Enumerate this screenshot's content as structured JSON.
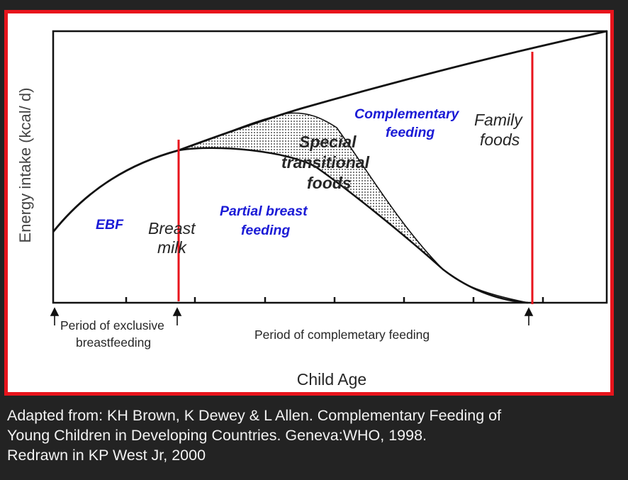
{
  "diagram": {
    "y_axis_label": "Energy intake (kcal/ d)",
    "x_axis_label": "Child Age",
    "labels": {
      "ebf": "EBF",
      "breast_milk_line1": "Breast",
      "breast_milk_line2": "milk",
      "partial_line1": "Partial breast",
      "partial_line2": "feeding",
      "special_line1": "Special",
      "special_line2": "transitional",
      "special_line3": "foods",
      "complementary_line1": "Complementary",
      "complementary_line2": "feeding",
      "family_line1": "Family",
      "family_line2": "foods"
    },
    "periods": {
      "exclusive_line1": "Period of exclusive",
      "exclusive_line2": "breastfeeding",
      "complementary": "Period of complemetary feeding"
    },
    "colors": {
      "frame": "#e8141c",
      "marker_line": "#e8141c",
      "blue_label": "#1b1bd6",
      "curve": "#111111"
    }
  },
  "caption": {
    "line1": "Adapted from: KH Brown, K Dewey & L Allen.  Complementary Feeding of",
    "line2": "Young Children in Developing Countries.  Geneva:WHO, 1998.",
    "line3": "Redrawn in  KP West Jr, 2000"
  }
}
